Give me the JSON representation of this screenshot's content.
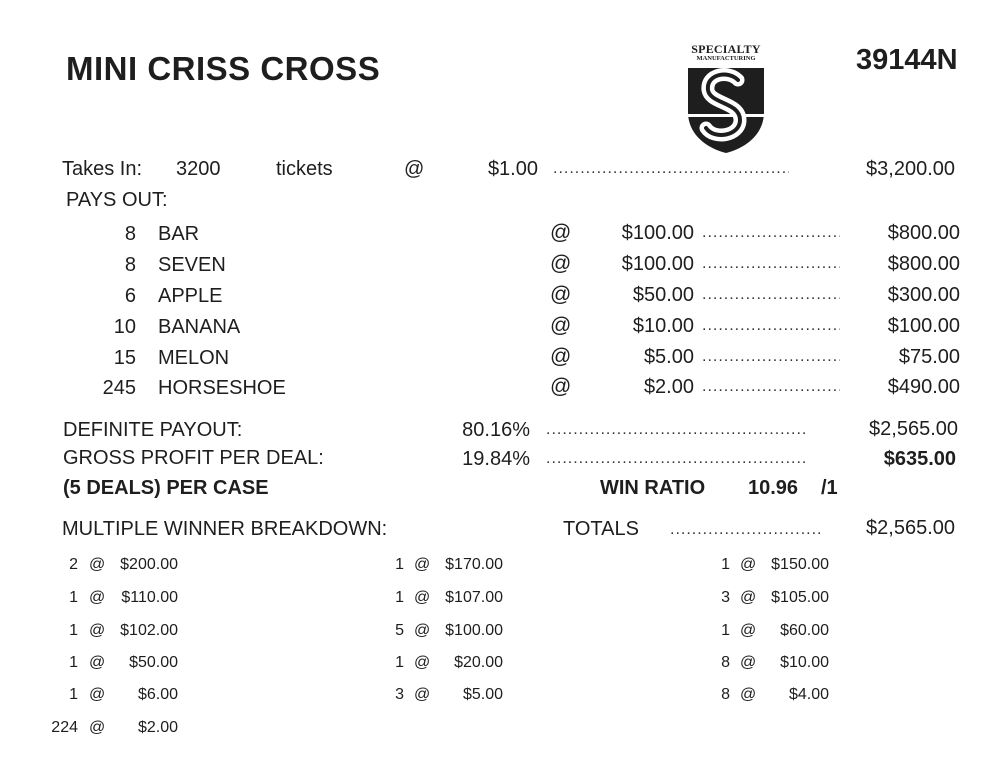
{
  "header": {
    "title": "MINI CRISS CROSS",
    "form_number": "39144N",
    "logo": {
      "line1": "SPECIALTY",
      "line2": "MANUFACTURING",
      "icon": "s-shield-logo"
    }
  },
  "takes_in": {
    "label": "Takes In:",
    "count": "3200",
    "unit": "tickets",
    "at": "@",
    "price": "$1.00",
    "total": "$3,200.00"
  },
  "pays_out": {
    "label": "PAYS OUT:",
    "rows": [
      {
        "qty": "8",
        "name": "BAR",
        "at": "@",
        "prize": "$100.00",
        "total": "$800.00"
      },
      {
        "qty": "8",
        "name": "SEVEN",
        "at": "@",
        "prize": "$100.00",
        "total": "$800.00"
      },
      {
        "qty": "6",
        "name": "APPLE",
        "at": "@",
        "prize": "$50.00",
        "total": "$300.00"
      },
      {
        "qty": "10",
        "name": "BANANA",
        "at": "@",
        "prize": "$10.00",
        "total": "$100.00"
      },
      {
        "qty": "15",
        "name": "MELON",
        "at": "@",
        "prize": "$5.00",
        "total": "$75.00"
      },
      {
        "qty": "245",
        "name": "HORSESHOE",
        "at": "@",
        "prize": "$2.00",
        "total": "$490.00"
      }
    ]
  },
  "summary": {
    "definite_payout_label": "DEFINITE PAYOUT:",
    "definite_payout_pct": "80.16%",
    "definite_payout_total": "$2,565.00",
    "gross_profit_label": "GROSS PROFIT PER DEAL:",
    "gross_profit_pct": "19.84%",
    "gross_profit_total": "$635.00",
    "deals_label": "(5 DEALS) PER CASE",
    "win_ratio_label": "WIN RATIO",
    "win_ratio_value": "10.96",
    "win_ratio_suffix": "/1"
  },
  "breakdown": {
    "label": "MULTIPLE WINNER BREAKDOWN:",
    "totals_label": "TOTALS",
    "totals_value": "$2,565.00",
    "col1": [
      {
        "qty": "2",
        "at": "@",
        "prize": "$200.00"
      },
      {
        "qty": "1",
        "at": "@",
        "prize": "$110.00"
      },
      {
        "qty": "1",
        "at": "@",
        "prize": "$102.00"
      },
      {
        "qty": "1",
        "at": "@",
        "prize": "$50.00"
      },
      {
        "qty": "1",
        "at": "@",
        "prize": "$6.00"
      },
      {
        "qty": "224",
        "at": "@",
        "prize": "$2.00"
      }
    ],
    "col2": [
      {
        "qty": "1",
        "at": "@",
        "prize": "$170.00"
      },
      {
        "qty": "1",
        "at": "@",
        "prize": "$107.00"
      },
      {
        "qty": "5",
        "at": "@",
        "prize": "$100.00"
      },
      {
        "qty": "1",
        "at": "@",
        "prize": "$20.00"
      },
      {
        "qty": "3",
        "at": "@",
        "prize": "$5.00"
      }
    ],
    "col3": [
      {
        "qty": "1",
        "at": "@",
        "prize": "$150.00"
      },
      {
        "qty": "3",
        "at": "@",
        "prize": "$105.00"
      },
      {
        "qty": "1",
        "at": "@",
        "prize": "$60.00"
      },
      {
        "qty": "8",
        "at": "@",
        "prize": "$10.00"
      },
      {
        "qty": "8",
        "at": "@",
        "prize": "$4.00"
      }
    ]
  }
}
